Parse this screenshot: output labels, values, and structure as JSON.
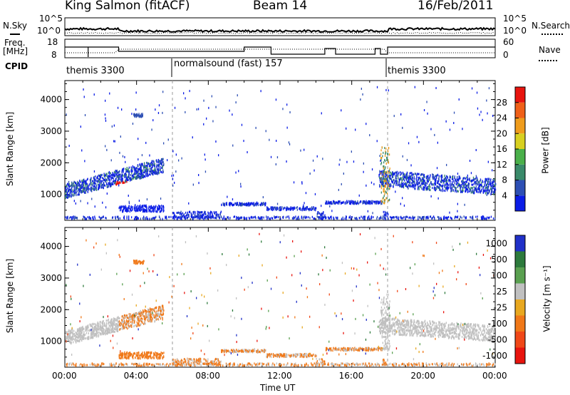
{
  "header": {
    "station": "King Salmon (fitACF)",
    "beam": "Beam 14",
    "date": "16/Feb/2011"
  },
  "labels": {
    "nsky": "N.Sky",
    "nsearch": "N.Search",
    "freq": "Freq.",
    "mhz": "[MHz]",
    "nave": "Nave",
    "cpid": "CPID",
    "tick_10e5_left": "10^5",
    "tick_10e0_left": "10^0",
    "tick_10e5_right": "10^5",
    "tick_10e0_right": "10^0",
    "freq_18": "18",
    "freq_8": "8",
    "nave_60": "60",
    "nave_0": "0"
  },
  "cpid_segments": [
    {
      "label": "themis 3300",
      "start_hour": 0
    },
    {
      "label": "normalsound (fast) 157",
      "start_hour": 6
    },
    {
      "label": "themis 3300",
      "start_hour": 18
    }
  ],
  "colors": {
    "power": [
      "#0a1ce6",
      "#2d4fb4",
      "#3a8a6a",
      "#4ab04a",
      "#d8d020",
      "#ef9c1c",
      "#f06018",
      "#e8140e"
    ],
    "velocity": [
      "#2030c8",
      "#2d7a3c",
      "#5aa050",
      "#c0c0c0",
      "#e8a820",
      "#f07818",
      "#f04818",
      "#e8140e"
    ]
  },
  "chart_data": [
    {
      "type": "heatmap",
      "name": "power",
      "ylabel": "Slant Range [km]",
      "xlabel": "Time UT",
      "x_ticks": [
        "00:00",
        "04:00",
        "08:00",
        "12:00",
        "16:00",
        "20:00",
        "00:00"
      ],
      "x_range_hours": [
        0,
        24
      ],
      "y_ticks": [
        "1000",
        "2000",
        "3000",
        "4000"
      ],
      "ylim_km": [
        180,
        4600
      ],
      "colorbar_label": "Power [dB]",
      "colorbar_ticks": [
        "4",
        "8",
        "12",
        "16",
        "20",
        "24",
        "28"
      ],
      "colorbar_range": [
        0,
        30
      ]
    },
    {
      "type": "heatmap",
      "name": "velocity",
      "ylabel": "Slant Range [km]",
      "xlabel": "Time UT",
      "x_ticks": [
        "00:00",
        "04:00",
        "08:00",
        "12:00",
        "16:00",
        "20:00",
        "00:00"
      ],
      "x_range_hours": [
        0,
        24
      ],
      "y_ticks": [
        "1000",
        "2000",
        "3000",
        "4000"
      ],
      "ylim_km": [
        180,
        4600
      ],
      "colorbar_label": "Velocity [m s⁻¹]",
      "colorbar_ticks": [
        "1000",
        "500",
        "100",
        "25",
        "-25",
        "-100",
        "-500",
        "-1000"
      ]
    }
  ],
  "axis": {
    "time_label": "Time UT"
  }
}
